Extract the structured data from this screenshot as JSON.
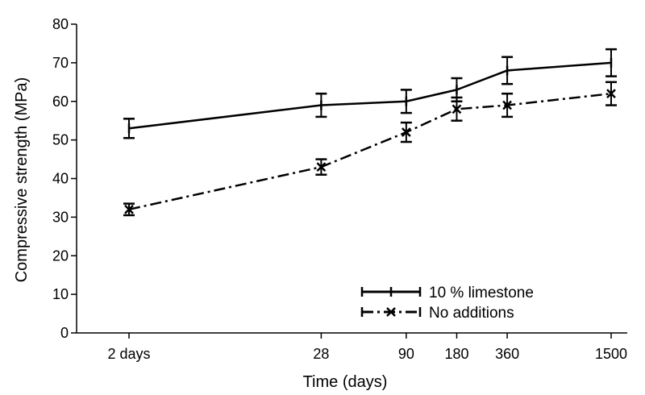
{
  "chart_data": {
    "type": "line",
    "title": "",
    "xlabel": "Time (days)",
    "ylabel": "Compressive strength (MPa)",
    "x_ticks": [
      "2 days",
      "28",
      "90",
      "180",
      "360",
      "1500"
    ],
    "ylim": [
      0,
      80
    ],
    "y_ticks": [
      0,
      10,
      20,
      30,
      40,
      50,
      60,
      70,
      80
    ],
    "x_scale": "log",
    "grid": false,
    "legend_position": "bottom-right",
    "series": [
      {
        "name": "10 % limestone",
        "style": "solid",
        "marker": "tick",
        "color": "#000000",
        "x": [
          2,
          28,
          90,
          180,
          360,
          1500
        ],
        "y": [
          53,
          59,
          60,
          63,
          68,
          70
        ],
        "error": [
          2.5,
          3,
          3,
          3,
          3.5,
          3.5
        ]
      },
      {
        "name": "No additions",
        "style": "dash-dot",
        "marker": "x",
        "color": "#000000",
        "x": [
          2,
          28,
          90,
          180,
          360,
          1500
        ],
        "y": [
          32,
          43,
          52,
          58,
          59,
          62
        ],
        "error": [
          1.5,
          2,
          2.5,
          3,
          3,
          3
        ]
      }
    ]
  }
}
